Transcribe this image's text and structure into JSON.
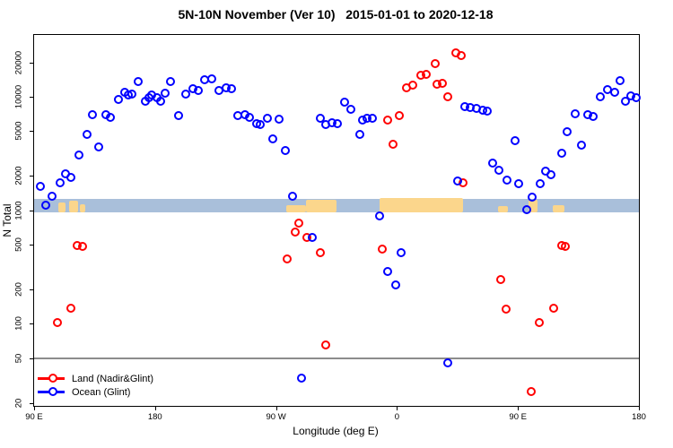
{
  "title": "5N-10N November (Ver 10)   2015-01-01 to 2020-12-18",
  "legend": {
    "items": [
      {
        "label": "Land (Nadir&Glint)",
        "color": "#ff0000"
      },
      {
        "label": "Ocean (Glint)",
        "color": "#0000ff"
      }
    ]
  },
  "chart_data": {
    "type": "scatter",
    "title": "5N-10N November (Ver 10)   2015-01-01 to 2020-12-18",
    "xlabel": "Longitude (deg E)",
    "ylabel": "N Total",
    "x_axis": {
      "note": "longitude axis starts at 90E, wraps east through 180, 90W, 0, 90E to 180; values are degrees east of 90E (0-450)",
      "range": [
        0,
        450
      ],
      "ticks": [
        0,
        90,
        180,
        270,
        360,
        450
      ],
      "tick_labels": [
        "90 E",
        "180",
        "90 W",
        "0",
        "90 E",
        "180"
      ]
    },
    "y_axis": {
      "scale": "log10",
      "range": [
        19,
        34000
      ],
      "ticks": [
        20,
        50,
        100,
        200,
        500,
        1000,
        2000,
        5000,
        10000,
        20000
      ],
      "tick_labels": [
        "20",
        "50",
        "100",
        "200",
        "500",
        "1000",
        "2000",
        "5000",
        "10000",
        "20000"
      ]
    },
    "reference_line_n": 50,
    "grid": "off",
    "legend_position": "bottom-left",
    "land_ocean_band": {
      "description": "horizontal strip map of the 5N-10N latitude zone near N=1000: blue = ocean, tan = land",
      "n_range": [
        950,
        1250
      ],
      "ocean_color": "#a9bfda",
      "land_color": "#fbd68c",
      "land_segments_deg": [
        {
          "from": 18,
          "to": 23.5,
          "frac": 0.75
        },
        {
          "from": 26,
          "to": 32.5,
          "frac": 0.9
        },
        {
          "from": 34,
          "to": 38,
          "frac": 0.6
        },
        {
          "from": 187.5,
          "to": 202.5,
          "frac": 0.55
        },
        {
          "from": 202.5,
          "to": 225,
          "frac": 0.95
        },
        {
          "from": 257,
          "to": 319,
          "frac": 1.08
        },
        {
          "from": 345.5,
          "to": 352.5,
          "frac": 0.5
        },
        {
          "from": 368,
          "to": 374.5,
          "frac": 0.95
        },
        {
          "from": 386,
          "to": 394.5,
          "frac": 0.55
        }
      ]
    },
    "series": [
      {
        "name": "Land (Nadir&Glint)",
        "color": "#ff0000",
        "points": [
          [
            17.4,
            101
          ],
          [
            28,
            135
          ],
          [
            32.7,
            485
          ],
          [
            36.7,
            477
          ],
          [
            188.3,
            368
          ],
          [
            194.3,
            637
          ],
          [
            197.6,
            762
          ],
          [
            203,
            572
          ],
          [
            213.6,
            419
          ],
          [
            217,
            65
          ],
          [
            259.7,
            448
          ],
          [
            263.1,
            6110
          ],
          [
            267.7,
            3770
          ],
          [
            272.4,
            6740
          ],
          [
            277.7,
            11800
          ],
          [
            281.8,
            12500
          ],
          [
            287.8,
            15300
          ],
          [
            291.8,
            15600
          ],
          [
            299.1,
            19400
          ],
          [
            299.8,
            12700
          ],
          [
            303.8,
            12900
          ],
          [
            307.8,
            9880
          ],
          [
            314.4,
            24100
          ],
          [
            318.4,
            22800
          ],
          [
            319.8,
            1720
          ],
          [
            347.2,
            243
          ],
          [
            351.2,
            134
          ],
          [
            370.5,
            25
          ],
          [
            375.9,
            101
          ],
          [
            387.2,
            135
          ],
          [
            392.6,
            485
          ],
          [
            395.9,
            477
          ]
        ]
      },
      {
        "name": "Ocean (Glint)",
        "color": "#0000ff",
        "points": [
          [
            4.7,
            1600
          ],
          [
            9.3,
            1100
          ],
          [
            14,
            1310
          ],
          [
            19.4,
            1720
          ],
          [
            24,
            2070
          ],
          [
            27.4,
            1930
          ],
          [
            34,
            3030
          ],
          [
            39.4,
            4590
          ],
          [
            44,
            6870
          ],
          [
            48.7,
            3550
          ],
          [
            54,
            6870
          ],
          [
            57.4,
            6490
          ],
          [
            62.8,
            9360
          ],
          [
            68.1,
            10800
          ],
          [
            70.5,
            10200
          ],
          [
            73.4,
            10400
          ],
          [
            78.1,
            13400
          ],
          [
            82.8,
            9030
          ],
          [
            85.5,
            9700
          ],
          [
            88.1,
            10200
          ],
          [
            91.5,
            9700
          ],
          [
            94.8,
            9030
          ],
          [
            98.1,
            10600
          ],
          [
            101.5,
            13400
          ],
          [
            107.5,
            6740
          ],
          [
            113.5,
            10400
          ],
          [
            118.2,
            11600
          ],
          [
            122.2,
            11200
          ],
          [
            127.5,
            13900
          ],
          [
            132.2,
            14100
          ],
          [
            138.2,
            11200
          ],
          [
            142.9,
            11800
          ],
          [
            146.9,
            11600
          ],
          [
            152.2,
            6740
          ],
          [
            156.9,
            6870
          ],
          [
            160.9,
            6490
          ],
          [
            165.6,
            5710
          ],
          [
            168.3,
            5630
          ],
          [
            173.6,
            6360
          ],
          [
            177.6,
            4180
          ],
          [
            182.3,
            6240
          ],
          [
            187.6,
            3300
          ],
          [
            192.3,
            1320
          ],
          [
            199,
            33
          ],
          [
            207.6,
            572
          ],
          [
            213.6,
            6360
          ],
          [
            217.6,
            5630
          ],
          [
            222.3,
            5860
          ],
          [
            226.3,
            5710
          ],
          [
            231.6,
            8880
          ],
          [
            236.3,
            7650
          ],
          [
            243,
            4560
          ],
          [
            245,
            6110
          ],
          [
            248.3,
            6360
          ],
          [
            252.3,
            6360
          ],
          [
            257.7,
            880
          ],
          [
            263.1,
            286
          ],
          [
            269.1,
            218
          ],
          [
            273.1,
            419
          ],
          [
            308.4,
            45
          ],
          [
            315.8,
            1790
          ],
          [
            321.1,
            8060
          ],
          [
            325.1,
            7920
          ],
          [
            329.8,
            7780
          ],
          [
            334.4,
            7500
          ],
          [
            337.8,
            7370
          ],
          [
            341.2,
            2580
          ],
          [
            346.5,
            2240
          ],
          [
            352.5,
            1830
          ],
          [
            357.9,
            4080
          ],
          [
            361.2,
            1680
          ],
          [
            367.2,
            1000
          ],
          [
            371.2,
            1290
          ],
          [
            376.6,
            1690
          ],
          [
            381.2,
            2180
          ],
          [
            384.6,
            2030
          ],
          [
            392.6,
            3140
          ],
          [
            397.2,
            4850
          ],
          [
            402.6,
            6980
          ],
          [
            407.3,
            3680
          ],
          [
            412.6,
            6870
          ],
          [
            416.6,
            6620
          ],
          [
            421.3,
            9880
          ],
          [
            426.9,
            11300
          ],
          [
            432,
            10800
          ],
          [
            436.6,
            13600
          ],
          [
            440.6,
            9030
          ],
          [
            444,
            10000
          ],
          [
            448,
            9700
          ]
        ]
      }
    ]
  }
}
